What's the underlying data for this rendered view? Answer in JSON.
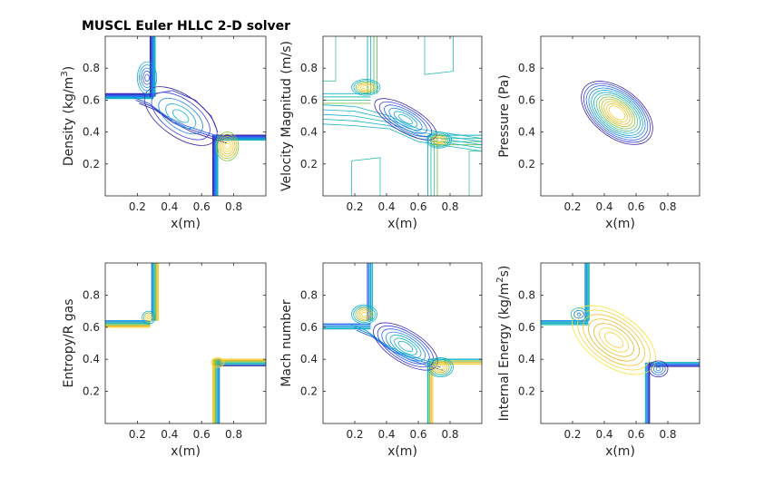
{
  "colors": {
    "dark_blue": "#3d26a8",
    "blue": "#2c7fe0",
    "teal": "#15b3c6",
    "green": "#7cc14a",
    "yellow": "#f7d23a",
    "gold": "#e6b71d"
  },
  "chart_data": [
    {
      "type": "contour",
      "title": "MUSCL Euler HLLC 2-D solver",
      "xlabel": "x(m)",
      "ylabel_main": "Density (kg/m",
      "ylabel_sup": "3",
      "ylabel_tail": ")",
      "xlim": [
        0,
        1
      ],
      "ylim": [
        0,
        1
      ],
      "xticks": [
        0.2,
        0.4,
        0.6,
        0.8
      ],
      "yticks": [
        0.2,
        0.4,
        0.6,
        0.8
      ],
      "tick_labels_x": [
        "0.2",
        "0.4",
        "0.6",
        "0.8"
      ],
      "tick_labels_y": [
        "0.2",
        "0.4",
        "0.6",
        "0.8"
      ]
    },
    {
      "type": "contour",
      "title": "",
      "xlabel": "x(m)",
      "ylabel_main": "Velocity Magnitud (m/s)",
      "ylabel_sup": "",
      "ylabel_tail": "",
      "xlim": [
        0,
        1
      ],
      "ylim": [
        0,
        1
      ],
      "xticks": [
        0.2,
        0.4,
        0.6,
        0.8
      ],
      "yticks": [
        0.2,
        0.4,
        0.6,
        0.8
      ],
      "tick_labels_x": [
        "0.2",
        "0.4",
        "0.6",
        "0.8"
      ],
      "tick_labels_y": [
        "0.2",
        "0.4",
        "0.6",
        "0.8"
      ]
    },
    {
      "type": "contour",
      "title": "",
      "xlabel": "x(m)",
      "ylabel_main": "Pressure (Pa)",
      "ylabel_sup": "",
      "ylabel_tail": "",
      "xlim": [
        0,
        1
      ],
      "ylim": [
        0,
        1
      ],
      "xticks": [
        0.2,
        0.4,
        0.6,
        0.8
      ],
      "yticks": [
        0.2,
        0.4,
        0.6,
        0.8
      ],
      "tick_labels_x": [
        "0.2",
        "0.4",
        "0.6",
        "0.8"
      ],
      "tick_labels_y": [
        "0.2",
        "0.4",
        "0.6",
        "0.8"
      ]
    },
    {
      "type": "contour",
      "title": "",
      "xlabel": "x(m)",
      "ylabel_main": "Entropy/R gas",
      "ylabel_sup": "",
      "ylabel_tail": "",
      "xlim": [
        0,
        1
      ],
      "ylim": [
        0,
        1
      ],
      "xticks": [
        0.2,
        0.4,
        0.6,
        0.8
      ],
      "yticks": [
        0.2,
        0.4,
        0.6,
        0.8
      ],
      "tick_labels_x": [
        "0.2",
        "0.4",
        "0.6",
        "0.8"
      ],
      "tick_labels_y": [
        "0.2",
        "0.4",
        "0.6",
        "0.8"
      ]
    },
    {
      "type": "contour",
      "title": "",
      "xlabel": "x(m)",
      "ylabel_main": "Mach number",
      "ylabel_sup": "",
      "ylabel_tail": "",
      "xlim": [
        0,
        1
      ],
      "ylim": [
        0,
        1
      ],
      "xticks": [
        0.2,
        0.4,
        0.6,
        0.8
      ],
      "yticks": [
        0.2,
        0.4,
        0.6,
        0.8
      ],
      "tick_labels_x": [
        "0.2",
        "0.4",
        "0.6",
        "0.8"
      ],
      "tick_labels_y": [
        "0.2",
        "0.4",
        "0.6",
        "0.8"
      ]
    },
    {
      "type": "contour",
      "title": "",
      "xlabel": "x(m)",
      "ylabel_main": "Internal Energy (kg/m",
      "ylabel_sup": "2",
      "ylabel_tail": "s)",
      "xlim": [
        0,
        1
      ],
      "ylim": [
        0,
        1
      ],
      "xticks": [
        0.2,
        0.4,
        0.6,
        0.8
      ],
      "yticks": [
        0.2,
        0.4,
        0.6,
        0.8
      ],
      "tick_labels_x": [
        "0.2",
        "0.4",
        "0.6",
        "0.8"
      ],
      "tick_labels_y": [
        "0.2",
        "0.4",
        "0.6",
        "0.8"
      ]
    }
  ]
}
